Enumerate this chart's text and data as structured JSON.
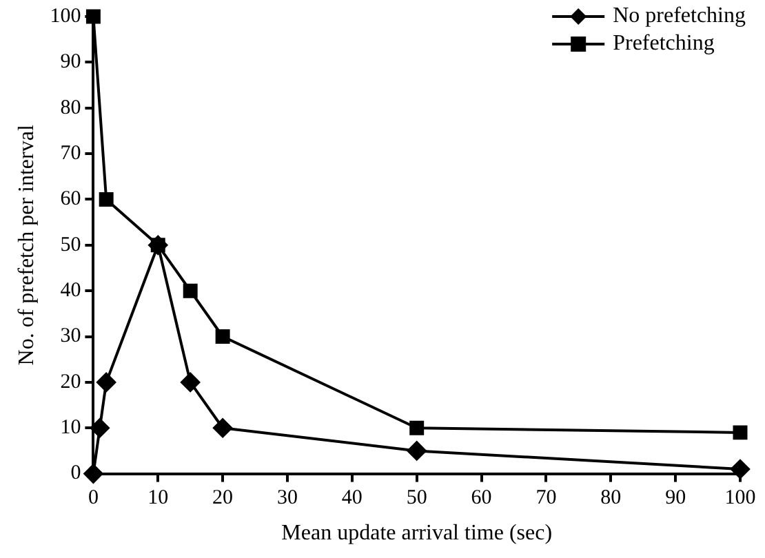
{
  "chart_data": {
    "type": "line",
    "xlabel": "Mean update arrival time (sec)",
    "ylabel": "No. of prefetch per interval",
    "series": [
      {
        "name": "No prefetching",
        "color": "#000000",
        "marker": "diamond",
        "x": [
          0,
          1,
          2,
          10,
          15,
          20,
          50,
          100
        ],
        "values": [
          0,
          10,
          20,
          50,
          20,
          10,
          5,
          1
        ]
      },
      {
        "name": "Prefetching",
        "color": "#000000",
        "marker": "square",
        "x": [
          0,
          2,
          10,
          15,
          20,
          50,
          100
        ],
        "values": [
          100,
          60,
          50,
          40,
          30,
          10,
          9
        ]
      }
    ],
    "xlim": [
      0,
      100
    ],
    "xticks": [
      0,
      10,
      20,
      30,
      40,
      50,
      60,
      70,
      80,
      90,
      100
    ],
    "ylim": [
      0,
      100
    ],
    "yticks": [
      0,
      10,
      20,
      30,
      40,
      50,
      60,
      70,
      80,
      90,
      100
    ],
    "grid": false,
    "legend": "top right",
    "line_style": "solid"
  }
}
